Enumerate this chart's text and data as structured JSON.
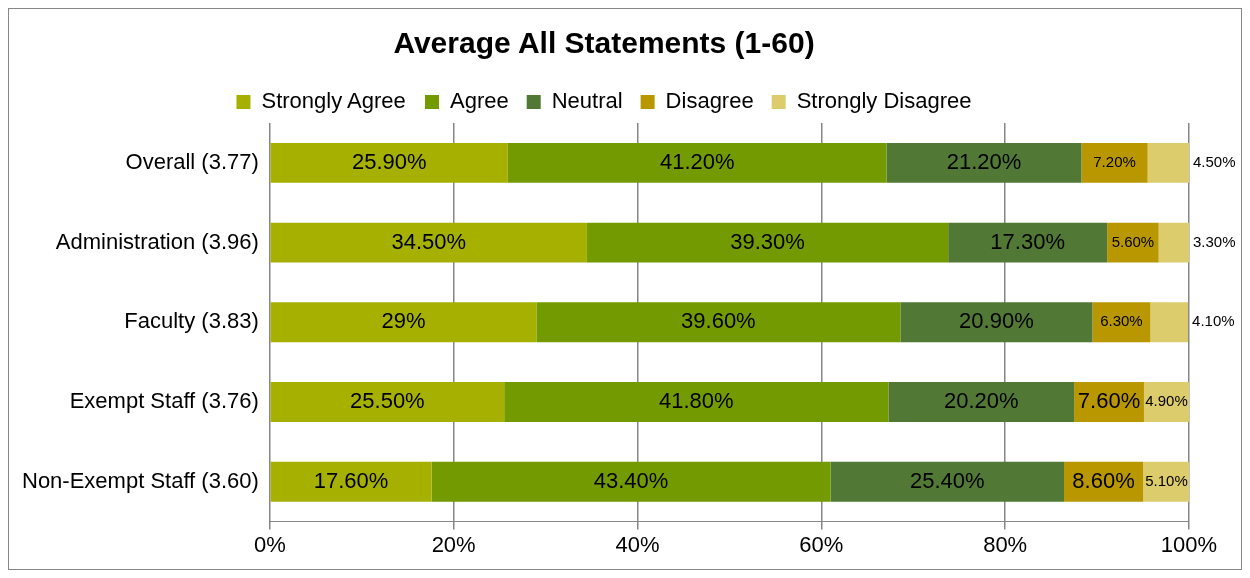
{
  "chart_data": {
    "type": "bar",
    "orientation": "horizontal",
    "stacked": true,
    "title": "Average All Statements (1-60)",
    "categories": [
      "Overall (3.77)",
      "Administration (3.96)",
      "Faculty (3.83)",
      "Exempt Staff (3.76)",
      "Non-Exempt Staff (3.60)"
    ],
    "series": [
      {
        "name": "Strongly Agree",
        "color": "#a5b000",
        "values": [
          25.9,
          34.5,
          29,
          25.5,
          17.6
        ],
        "value_labels": [
          "25.90%",
          "34.50%",
          "29%",
          "25.50%",
          "17.60%"
        ]
      },
      {
        "name": "Agree",
        "color": "#739a00",
        "values": [
          41.2,
          39.3,
          39.6,
          41.8,
          43.4
        ],
        "value_labels": [
          "41.20%",
          "39.30%",
          "39.60%",
          "41.80%",
          "43.40%"
        ]
      },
      {
        "name": "Neutral",
        "color": "#517834",
        "values": [
          21.2,
          17.3,
          20.9,
          20.2,
          25.4
        ],
        "value_labels": [
          "21.20%",
          "17.30%",
          "20.90%",
          "20.20%",
          "25.40%"
        ]
      },
      {
        "name": "Disagree",
        "color": "#b89700",
        "values": [
          7.2,
          5.6,
          6.3,
          7.6,
          8.6
        ],
        "value_labels": [
          "7.20%",
          "5.60%",
          "6.30%",
          "7.60%",
          "8.60%"
        ]
      },
      {
        "name": "Strongly Disagree",
        "color": "#ddcc6c",
        "values": [
          4.5,
          3.3,
          4.1,
          4.9,
          5.1
        ],
        "value_labels": [
          "4.50%",
          "3.30%",
          "4.10%",
          "4.90%",
          "5.10%"
        ]
      }
    ],
    "xlim": [
      0,
      100
    ],
    "xticks": [
      {
        "value": 0,
        "label": "0%"
      },
      {
        "value": 20,
        "label": "20%"
      },
      {
        "value": 40,
        "label": "40%"
      },
      {
        "value": 60,
        "label": "60%"
      },
      {
        "value": 80,
        "label": "80%"
      },
      {
        "value": 100,
        "label": "100%"
      }
    ],
    "grid": "x",
    "legend": "top"
  }
}
